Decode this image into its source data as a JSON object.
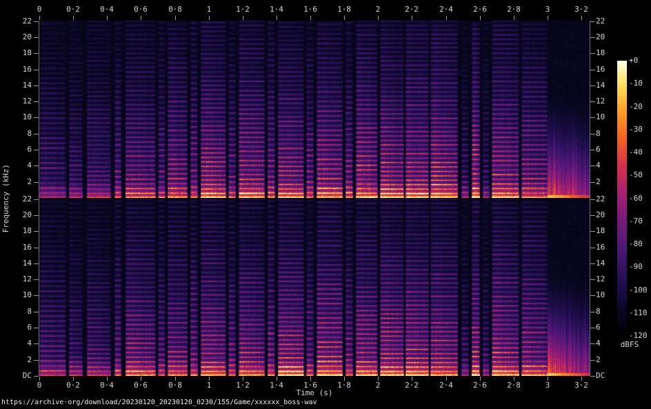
{
  "page": {
    "background_color": "#000000",
    "source_url_text": "https://archive·org/download/20230120_20230120_0230/155/Game/xxxxxx_boss·wav"
  },
  "chart_data": {
    "type": "heatmap",
    "subtype": "stereo-audio-spectrogram",
    "title": "",
    "xlabel": "Time (s)",
    "ylabel": "Frequency (kHz)",
    "colorbar_label": "dBFS",
    "x_range_s": [
      0,
      3.25
    ],
    "y_range_khz": [
      0,
      22.05
    ],
    "db_range": [
      0,
      -120
    ],
    "channels": [
      "channel-1",
      "channel-2"
    ],
    "grid": false,
    "legend_position": "right-colorbar",
    "time_ticks": {
      "values": [
        0,
        0.2,
        0.4,
        0.6,
        0.8,
        1,
        1.2,
        1.4,
        1.6,
        1.8,
        2,
        2.2,
        2.4,
        2.6,
        2.8,
        3,
        3.2
      ],
      "labels": [
        "0",
        "0·2",
        "0·4",
        "0·6",
        "0·8",
        "1",
        "1·2",
        "1·4",
        "1·6",
        "1·8",
        "2",
        "2·2",
        "2·4",
        "2·6",
        "2·8",
        "3",
        "3·2"
      ]
    },
    "freq_ticks": {
      "values": [
        22,
        20,
        18,
        16,
        14,
        12,
        10,
        8,
        6,
        4,
        2
      ],
      "labels": [
        "22",
        "20",
        "18",
        "16",
        "14",
        "12",
        "10",
        "8",
        "6",
        "4",
        "2"
      ],
      "dc_label": "DC"
    },
    "db_ticks": {
      "values": [
        0,
        -10,
        -20,
        -30,
        -40,
        -50,
        -60,
        -70,
        -80,
        -90,
        -100,
        -110,
        -120
      ],
      "labels": [
        "+0",
        "-10",
        "-20",
        "-30",
        "-40",
        "-50",
        "-60",
        "-70",
        "-80",
        "-90",
        "-100",
        "-110",
        "-120"
      ]
    },
    "colormap": [
      [
        0.0,
        "#000000"
      ],
      [
        0.08,
        "#08061e"
      ],
      [
        0.18,
        "#1c0e4a"
      ],
      [
        0.3,
        "#461674"
      ],
      [
        0.42,
        "#781a7e"
      ],
      [
        0.52,
        "#a82070"
      ],
      [
        0.62,
        "#d8304c"
      ],
      [
        0.72,
        "#f56420"
      ],
      [
        0.82,
        "#fda026"
      ],
      [
        0.9,
        "#ffd755"
      ],
      [
        0.96,
        "#fff0a0"
      ],
      [
        1.0,
        "#ffffeb"
      ]
    ],
    "segments": [
      {
        "t0": 0.0,
        "t1": 0.155,
        "level": 0.5,
        "f0": 0.62
      },
      {
        "t0": 0.172,
        "t1": 0.255,
        "level": 0.48,
        "f0": 0.58
      },
      {
        "t0": 0.277,
        "t1": 0.42,
        "level": 0.52,
        "f0": 0.55
      },
      {
        "t0": 0.443,
        "t1": 0.484,
        "level": 0.62,
        "f0": 0.66
      },
      {
        "t0": 0.505,
        "t1": 0.685,
        "level": 0.68,
        "f0": 0.58
      },
      {
        "t0": 0.7,
        "t1": 0.742,
        "level": 0.6,
        "f0": 0.66
      },
      {
        "t0": 0.755,
        "t1": 0.875,
        "level": 0.72,
        "f0": 0.6
      },
      {
        "t0": 0.89,
        "t1": 0.935,
        "level": 0.66,
        "f0": 0.68
      },
      {
        "t0": 0.95,
        "t1": 1.1,
        "level": 0.75,
        "f0": 0.56
      },
      {
        "t0": 1.115,
        "t1": 1.16,
        "level": 0.64,
        "f0": 0.66
      },
      {
        "t0": 1.175,
        "t1": 1.33,
        "level": 0.76,
        "f0": 0.58
      },
      {
        "t0": 1.345,
        "t1": 1.39,
        "level": 0.65,
        "f0": 0.66
      },
      {
        "t0": 1.405,
        "t1": 1.56,
        "level": 0.77,
        "f0": 0.56
      },
      {
        "t0": 1.575,
        "t1": 1.62,
        "level": 0.66,
        "f0": 0.66
      },
      {
        "t0": 1.635,
        "t1": 1.79,
        "level": 0.78,
        "f0": 0.6
      },
      {
        "t0": 1.805,
        "t1": 1.85,
        "level": 0.67,
        "f0": 0.66
      },
      {
        "t0": 1.865,
        "t1": 1.995,
        "level": 0.79,
        "f0": 0.58
      },
      {
        "t0": 2.01,
        "t1": 2.15,
        "level": 0.8,
        "f0": 0.55
      },
      {
        "t0": 2.158,
        "t1": 2.3,
        "level": 0.8,
        "f0": 0.55
      },
      {
        "t0": 2.308,
        "t1": 2.47,
        "level": 0.79,
        "f0": 0.55
      },
      {
        "t0": 2.49,
        "t1": 2.535,
        "level": 0.45,
        "f0": 0.66
      },
      {
        "t0": 2.55,
        "t1": 2.6,
        "level": 0.86,
        "f0": 0.6
      },
      {
        "t0": 2.615,
        "t1": 2.655,
        "level": 0.44,
        "f0": 0.66
      },
      {
        "t0": 2.67,
        "t1": 2.83,
        "level": 0.8,
        "f0": 0.58
      },
      {
        "t0": 2.845,
        "t1": 3.0,
        "level": 0.7,
        "f0": 0.6
      }
    ],
    "fade_tail": {
      "t0": 3.0,
      "t1": 3.25,
      "level": 0.72
    }
  }
}
